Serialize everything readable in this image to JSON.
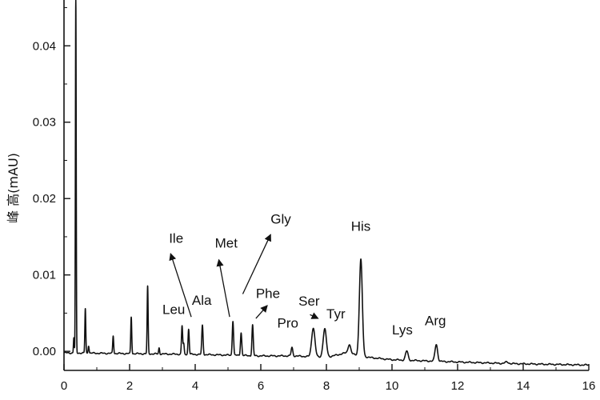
{
  "chart_data": {
    "type": "line",
    "title": "",
    "xlabel": "",
    "ylabel": "峰 高(mAU)",
    "xlim": [
      0,
      16
    ],
    "ylim": [
      -0.0025,
      0.046
    ],
    "x_ticks": [
      0,
      2,
      4,
      6,
      8,
      10,
      12,
      14,
      16
    ],
    "y_ticks": [
      0.0,
      0.01,
      0.02,
      0.03,
      0.04
    ],
    "y_tick_labels": [
      "0.00",
      "0.01",
      "0.02",
      "0.03",
      "0.04"
    ],
    "grid": false,
    "legend": "none",
    "colors": {
      "line": "#111111",
      "axis": "#111111",
      "background": "#ffffff"
    },
    "series": [
      {
        "baseline": [
          [
            0.0,
            -0.0002
          ],
          [
            2.0,
            -0.0003
          ],
          [
            4.0,
            -0.0004
          ],
          [
            6.0,
            -0.0006
          ],
          [
            7.0,
            -0.0006
          ],
          [
            8.0,
            -0.0008
          ],
          [
            8.6,
            -0.0002
          ],
          [
            9.3,
            -0.0008
          ],
          [
            10.0,
            -0.0011
          ],
          [
            12.0,
            -0.0014
          ],
          [
            13.5,
            -0.0016
          ],
          [
            16.0,
            -0.0018
          ]
        ],
        "peaks": [
          {
            "t": 0.3,
            "h": 0.002,
            "w": 0.012
          },
          {
            "t": 0.36,
            "h": 0.0465,
            "w": 0.012
          },
          {
            "t": 0.65,
            "h": 0.0058,
            "w": 0.014
          },
          {
            "t": 0.75,
            "h": 0.001,
            "w": 0.015
          },
          {
            "t": 1.5,
            "h": 0.0023,
            "w": 0.015
          },
          {
            "t": 2.05,
            "h": 0.0048,
            "w": 0.015
          },
          {
            "t": 2.55,
            "h": 0.0088,
            "w": 0.015
          },
          {
            "t": 2.9,
            "h": 0.0008,
            "w": 0.015
          },
          {
            "t": 3.6,
            "h": 0.0037,
            "w": 0.018
          },
          {
            "t": 3.65,
            "h": 0.0013,
            "w": 0.015
          },
          {
            "t": 3.8,
            "h": 0.0033,
            "w": 0.018
          },
          {
            "t": 4.22,
            "h": 0.0038,
            "w": 0.02
          },
          {
            "t": 5.15,
            "h": 0.0045,
            "w": 0.02
          },
          {
            "t": 5.4,
            "h": 0.003,
            "w": 0.02
          },
          {
            "t": 5.75,
            "h": 0.004,
            "w": 0.02
          },
          {
            "t": 6.95,
            "h": 0.0011,
            "w": 0.025
          },
          {
            "t": 7.6,
            "h": 0.0038,
            "w": 0.05
          },
          {
            "t": 7.95,
            "h": 0.0037,
            "w": 0.05
          },
          {
            "t": 8.7,
            "h": 0.0012,
            "w": 0.04
          },
          {
            "t": 9.05,
            "h": 0.0126,
            "w": 0.045
          },
          {
            "t": 10.45,
            "h": 0.0012,
            "w": 0.04
          },
          {
            "t": 11.35,
            "h": 0.0022,
            "w": 0.04
          },
          {
            "t": 13.5,
            "h": 0.0002,
            "w": 0.05
          }
        ]
      }
    ],
    "annotations": [
      {
        "text": "Ile",
        "x": 3.2,
        "y": 0.0142,
        "arrow_from": [
          3.88,
          0.0045
        ],
        "arrow_to": [
          3.25,
          0.0128
        ]
      },
      {
        "text": "Met",
        "x": 4.6,
        "y": 0.0136,
        "arrow_from": [
          5.05,
          0.0045
        ],
        "arrow_to": [
          4.72,
          0.012
        ]
      },
      {
        "text": "Gly",
        "x": 6.3,
        "y": 0.0167,
        "arrow_from": [
          5.45,
          0.0075
        ],
        "arrow_to": [
          6.3,
          0.0153
        ]
      },
      {
        "text": "Leu",
        "x": 3.0,
        "y": 0.0049
      },
      {
        "text": "Ala",
        "x": 3.9,
        "y": 0.0061
      },
      {
        "text": "Phe",
        "x": 5.85,
        "y": 0.007,
        "arrow_from": [
          5.85,
          0.0043
        ],
        "arrow_to": [
          6.2,
          0.006
        ]
      },
      {
        "text": "Pro",
        "x": 6.5,
        "y": 0.0031
      },
      {
        "text": "Ser",
        "x": 7.15,
        "y": 0.006,
        "arrow_from": [
          7.5,
          0.0048
        ],
        "arrow_to": [
          7.75,
          0.0043
        ]
      },
      {
        "text": "Tyr",
        "x": 8.0,
        "y": 0.0043
      },
      {
        "text": "His",
        "x": 8.75,
        "y": 0.0158
      },
      {
        "text": "Lys",
        "x": 10.0,
        "y": 0.0022
      },
      {
        "text": "Arg",
        "x": 11.0,
        "y": 0.0034
      }
    ]
  }
}
